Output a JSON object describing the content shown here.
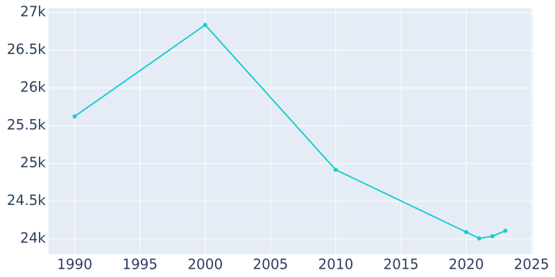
{
  "chart_data": {
    "type": "line",
    "x": [
      1990,
      2000,
      2010,
      2020,
      2021,
      2022,
      2023
    ],
    "series": [
      {
        "color": "#17cccc",
        "values": [
          25624,
          26835,
          24917,
          24092,
          24009,
          24037,
          24110
        ]
      }
    ],
    "xlim": [
      1988,
      2025.1
    ],
    "ylim": [
      23800,
      27055
    ],
    "xticks": [
      1990,
      1995,
      2000,
      2005,
      2010,
      2015,
      2020,
      2025
    ],
    "yticks": [
      {
        "value": 24000,
        "label": "24k"
      },
      {
        "value": 24500,
        "label": "24.5k"
      },
      {
        "value": 25000,
        "label": "25k"
      },
      {
        "value": 25500,
        "label": "25.5k"
      },
      {
        "value": 26000,
        "label": "26k"
      },
      {
        "value": 26500,
        "label": "26.5k"
      },
      {
        "value": 27000,
        "label": "27k"
      }
    ],
    "grid": true
  }
}
